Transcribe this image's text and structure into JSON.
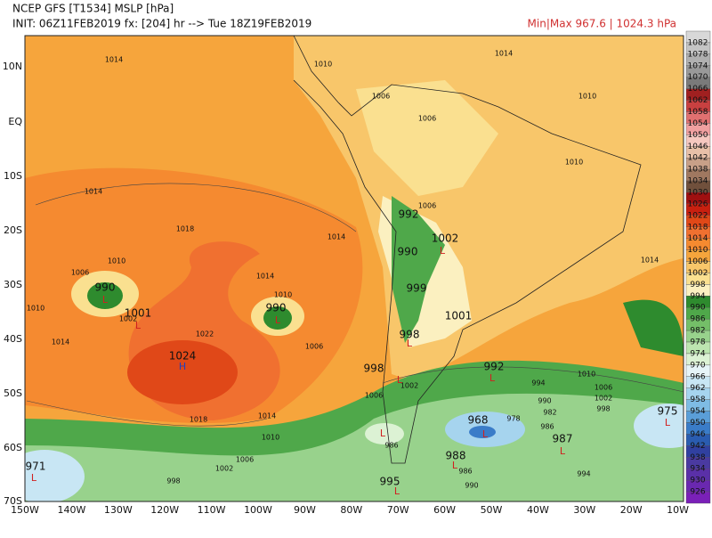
{
  "header": {
    "line1": "NCEP GFS [T1534] MSLP [hPa]",
    "line2": "INIT: 06Z11FEB2019 fx: [204] hr --> Tue 18Z19FEB2019",
    "minmax": "Min|Max 967.6 | 1024.3 hPa"
  },
  "latitude_labels": [
    "10N",
    "EQ",
    "10S",
    "20S",
    "30S",
    "40S",
    "50S",
    "60S",
    "70S"
  ],
  "longitude_labels": [
    "150W",
    "140W",
    "130W",
    "120W",
    "110W",
    "100W",
    "90W",
    "80W",
    "70W",
    "60W",
    "50W",
    "40W",
    "30W",
    "20W",
    "10W"
  ],
  "colorbar": {
    "levels": [
      1082,
      1078,
      1074,
      1070,
      1066,
      1062,
      1058,
      1054,
      1050,
      1046,
      1042,
      1038,
      1034,
      1030,
      1026,
      1022,
      1018,
      1014,
      1010,
      1006,
      1002,
      998,
      994,
      990,
      986,
      982,
      978,
      974,
      970,
      966,
      962,
      958,
      954,
      950,
      946,
      942,
      938,
      934,
      930,
      926
    ],
    "colors": [
      "#d8d8d8",
      "#c4c4c4",
      "#b0b0b0",
      "#999999",
      "#7a7a7a",
      "#a02020",
      "#c84040",
      "#e07070",
      "#f0a0a0",
      "#f6c8c0",
      "#e8c0a8",
      "#c8a088",
      "#a07860",
      "#70503c",
      "#a01010",
      "#c82010",
      "#e04818",
      "#f07030",
      "#f58a30",
      "#f6a53c",
      "#f8c66a",
      "#fae090",
      "#fbf0c0",
      "#2e8b2e",
      "#4fa84a",
      "#74bf68",
      "#98d28c",
      "#bde6b0",
      "#dcf2d4",
      "#e6f4f8",
      "#c8e6f4",
      "#a6d4ee",
      "#7ebce4",
      "#5a9ed8",
      "#3a7cc8",
      "#2a5cb0",
      "#3040a0",
      "#4a3aa0",
      "#5a30a8",
      "#6a28b0",
      "#7a20b8"
    ]
  },
  "contour_labels": [
    "1014",
    "1010",
    "1014",
    "1010",
    "1006",
    "1006",
    "1010",
    "1014",
    "1018",
    "1014",
    "1006",
    "1010",
    "1006",
    "1010",
    "1002",
    "1014",
    "1022",
    "1014",
    "1010",
    "1006",
    "1018",
    "1014",
    "1010",
    "1006",
    "1002",
    "998",
    "1010",
    "1006",
    "1002",
    "998",
    "994",
    "990",
    "982",
    "978",
    "986",
    "994",
    "990",
    "986",
    "986",
    "1014",
    "1002",
    "1006"
  ],
  "center_labels": [
    "990",
    "1001",
    "990",
    "1024",
    "992",
    "1002",
    "990",
    "999",
    "1001",
    "998",
    "998",
    "992",
    "968",
    "975",
    "987",
    "971",
    "988",
    "995"
  ],
  "symbols": [
    "H",
    "L",
    "L",
    "L",
    "L",
    "L",
    "L",
    "L",
    "L",
    "L",
    "L",
    "L",
    "L",
    "L",
    "L"
  ]
}
